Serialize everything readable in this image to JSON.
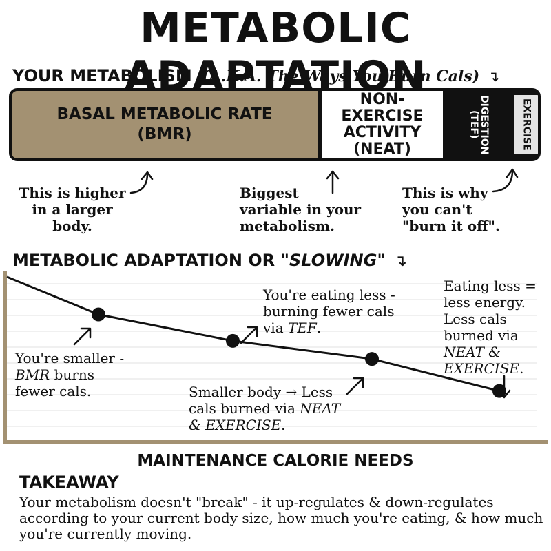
{
  "title": "METABOLIC ADAPTATION",
  "metabolism": {
    "heading": "YOUR METABOLISM",
    "subheading": "(A.K.A. The Ways You Burn Cals)",
    "segments": {
      "bmr": "BASAL METABOLIC RATE (BMR)",
      "neat": "NON-EXERCISE ACTIVITY (NEAT)",
      "tef": "DIGESTION (TEF)",
      "exercise": "EXERCISE"
    },
    "notes": {
      "bmr_line1": "This is higher",
      "bmr_line2": "in a larger",
      "bmr_line3": "body.",
      "neat_line1": "Biggest",
      "neat_line2": "variable in your",
      "neat_line3": "metabolism.",
      "exercise_line1": "This is why",
      "exercise_line2": "you can't",
      "exercise_line3": "\"burn it off\"."
    }
  },
  "adaptation": {
    "heading_start": "METABOLIC ADAPTATION OR ",
    "heading_quote": "\"SLOWING\"",
    "xlabel": "MAINTENANCE CALORIE NEEDS",
    "annotations": {
      "p1_line1": "You're smaller -",
      "p1_line2_em": "BMR",
      "p1_line2_rest": " burns",
      "p1_line3": "fewer cals.",
      "p2_line1": "You're eating less -",
      "p2_line2": "burning fewer cals",
      "p2_line3_pre": "via ",
      "p2_line3_em": "TEF",
      "p2_line3_post": ".",
      "p3_line1": "Smaller body → Less",
      "p3_line2_pre": "cals burned via ",
      "p3_line2_em": "NEAT",
      "p3_line3_em": "& EXERCISE",
      "p3_line3_post": ".",
      "p4_line1": "Eating less =",
      "p4_line2": "less energy.",
      "p4_line3": "Less cals",
      "p4_line4": "burned via",
      "p4_line5_em": "NEAT &",
      "p4_line6_em": "EXERCISE."
    }
  },
  "chart_data": {
    "type": "line",
    "xlabel": "MAINTENANCE CALORIE NEEDS",
    "points": [
      {
        "x": 0,
        "y": 100
      },
      {
        "x": 1,
        "y": 73
      },
      {
        "x": 2,
        "y": 54
      },
      {
        "x": 3,
        "y": 41
      },
      {
        "x": 4,
        "y": 18
      }
    ],
    "marked_points": [
      1,
      2,
      3,
      4
    ],
    "grid": true,
    "colors": {
      "line": "#111111",
      "axis": "#a39172",
      "grid": "#e2e2e2"
    }
  },
  "takeaway": {
    "heading": "TAKEAWAY",
    "line1": "Your metabolism doesn't \"break\" - it up-regulates & down-regulates",
    "line2": "according to your current body size, how much you're eating, & how much",
    "line3": "you're currently moving."
  },
  "colors": {
    "tan": "#a39172",
    "black": "#111111",
    "light_gray": "#e4e4e4"
  }
}
